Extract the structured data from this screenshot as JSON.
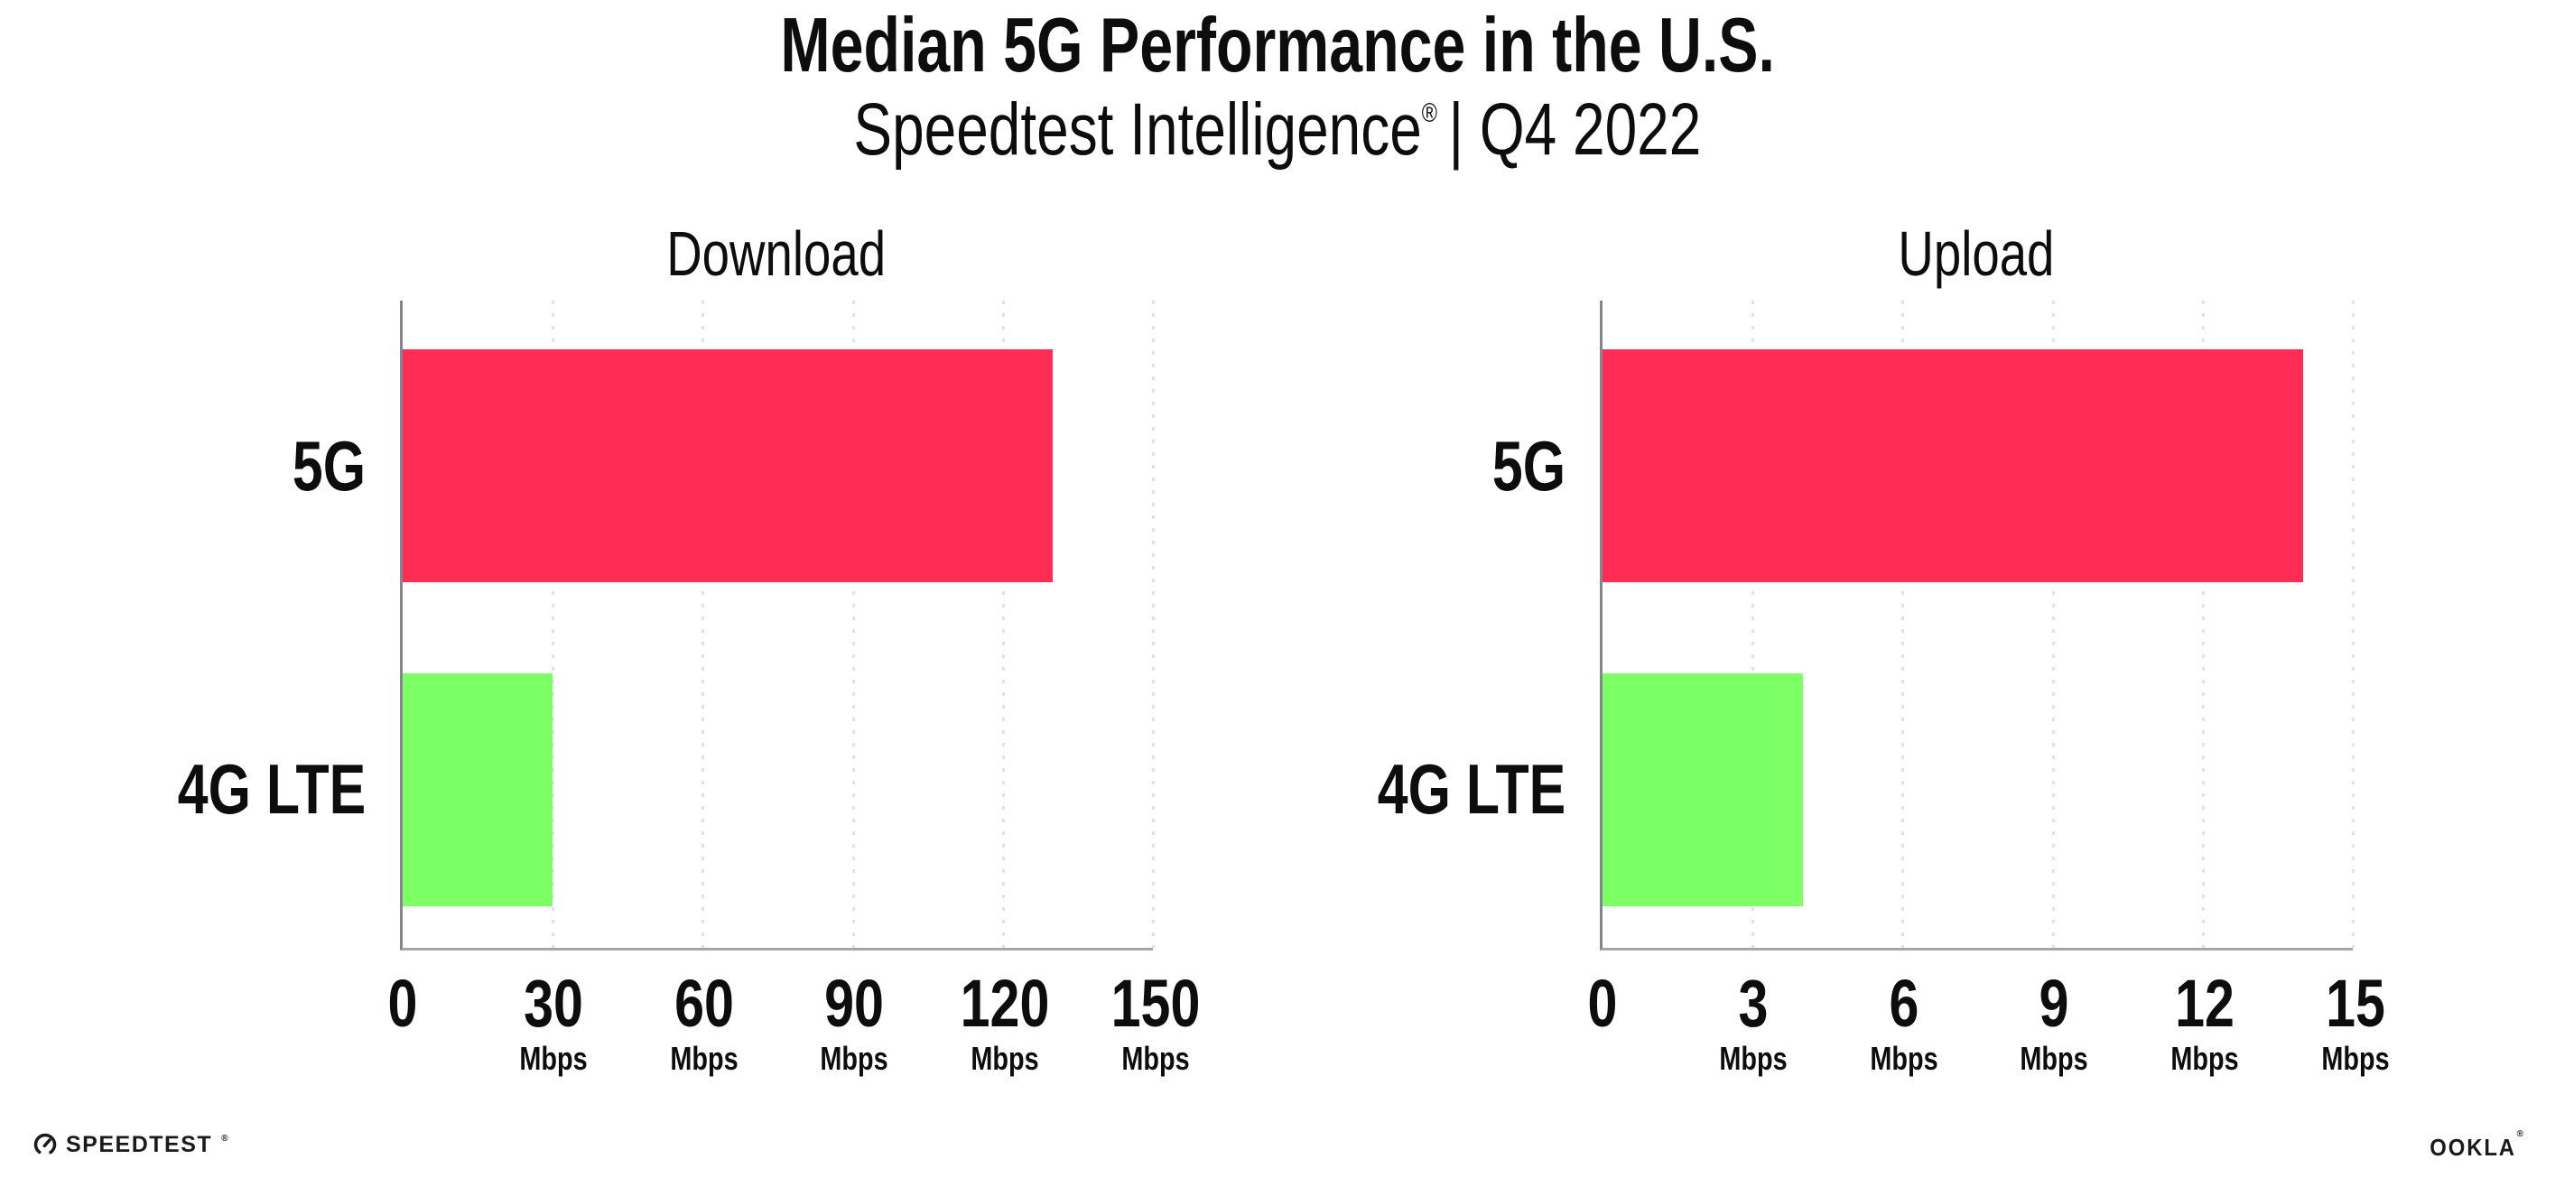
{
  "header": {
    "title": "Median 5G Performance in the U.S.",
    "subtitle_brand": "Speedtest Intelligence",
    "subtitle_registered": "®",
    "subtitle_rest": "| Q4 2022"
  },
  "chart_data": [
    {
      "type": "bar",
      "orientation": "horizontal",
      "title": "Download",
      "categories": [
        "5G",
        "4G LTE"
      ],
      "values": [
        130,
        30
      ],
      "xlim": [
        0,
        150
      ],
      "xticks": [
        0,
        30,
        60,
        90,
        120,
        150
      ],
      "tick_unit": "Mbps",
      "bar_colors": [
        "#ff2d55",
        "#7dff66"
      ],
      "grid": "vertical dotted",
      "legend": "none"
    },
    {
      "type": "bar",
      "orientation": "horizontal",
      "title": "Upload",
      "categories": [
        "5G",
        "4G LTE"
      ],
      "values": [
        14,
        4
      ],
      "xlim": [
        0,
        15
      ],
      "xticks": [
        0,
        3,
        6,
        9,
        12,
        15
      ],
      "tick_unit": "Mbps",
      "bar_colors": [
        "#ff2d55",
        "#7dff66"
      ],
      "grid": "vertical dotted",
      "legend": "none"
    }
  ],
  "palette": {
    "bar_5g": "#ff2d55",
    "bar_4g": "#7dff66",
    "gridline": "#e0e1ea",
    "axis_left": "#85858f",
    "axis_bottom": "#a6a6a6",
    "text": "#0d0d0d"
  },
  "footer": {
    "speedtest_label": "SPEEDTEST",
    "speedtest_registered": "®",
    "ookla_label": "OOKLA",
    "ookla_registered": "®"
  }
}
